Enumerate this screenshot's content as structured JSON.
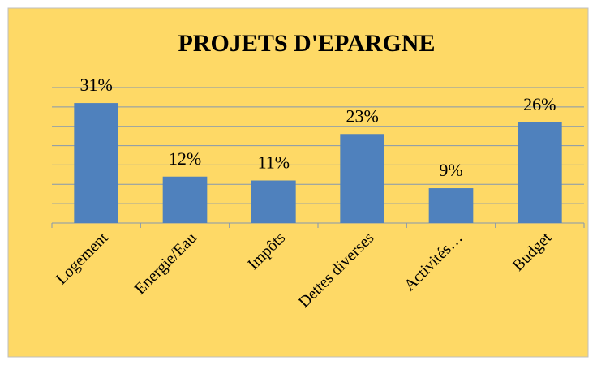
{
  "chart_data": {
    "type": "bar",
    "title": "PROJETS D'EPARGNE",
    "categories": [
      "Logement",
      "Energie/Eau",
      "Impôts",
      "Dettes diverses",
      "Activités…",
      "Budget"
    ],
    "values": [
      31,
      12,
      11,
      23,
      9,
      26
    ],
    "value_labels": [
      "31%",
      "12%",
      "11%",
      "23%",
      "9%",
      "26%"
    ],
    "color": "#4f81bd",
    "ylim": [
      0,
      35
    ],
    "yticks": [
      0,
      5,
      10,
      15,
      20,
      25,
      30,
      35
    ],
    "grid": true
  }
}
